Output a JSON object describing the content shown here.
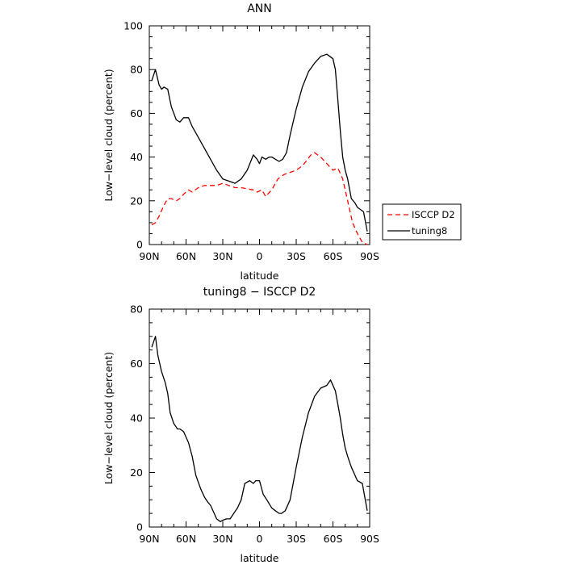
{
  "chart_data": [
    {
      "type": "line",
      "title": "ANN",
      "xlabel": "latitude",
      "ylabel": "Low−level cloud (percent)",
      "x_ticks": [
        "90N",
        "60N",
        "30N",
        "0",
        "30S",
        "60S",
        "90S"
      ],
      "xlim": [
        90,
        -90
      ],
      "ylim": [
        0,
        100
      ],
      "y_ticks": [
        0,
        20,
        40,
        60,
        80,
        100
      ],
      "grid": false,
      "legend_position": "right-bottom-outside",
      "series": [
        {
          "name": "ISCCP D2",
          "color": "#ff0000",
          "dash": "dashed",
          "x": [
            88,
            85,
            82,
            78,
            75,
            72,
            68,
            65,
            62,
            58,
            55,
            50,
            45,
            40,
            35,
            30,
            25,
            20,
            15,
            10,
            5,
            2,
            -2,
            -5,
            -10,
            -15,
            -20,
            -25,
            -30,
            -35,
            -38,
            -42,
            -45,
            -50,
            -55,
            -60,
            -64,
            -68,
            -72,
            -76,
            -80,
            -84,
            -88
          ],
          "y": [
            9,
            10,
            13,
            18,
            21,
            21,
            20,
            21,
            23,
            25,
            24,
            26,
            27,
            27,
            27,
            28,
            27,
            26,
            26,
            25.5,
            25,
            24,
            25,
            22,
            25,
            30,
            32,
            33,
            34,
            36,
            38,
            41,
            42,
            40,
            37,
            34,
            35,
            30,
            20,
            10,
            5,
            1,
            0
          ]
        },
        {
          "name": "tuning8",
          "color": "#000000",
          "dash": "solid",
          "x": [
            88,
            85,
            82,
            80,
            78,
            75,
            72,
            68,
            65,
            62,
            58,
            55,
            50,
            45,
            40,
            35,
            30,
            25,
            20,
            15,
            10,
            5,
            2,
            0,
            -2,
            -5,
            -8,
            -10,
            -13,
            -16,
            -19,
            -22,
            -25,
            -30,
            -35,
            -40,
            -45,
            -50,
            -55,
            -60,
            -62,
            -64,
            -66,
            -68,
            -70,
            -72,
            -75,
            -78,
            -80,
            -85,
            -88
          ],
          "y": [
            75,
            80,
            73,
            71,
            72,
            71,
            63,
            57,
            56,
            58,
            58,
            54,
            49,
            44,
            39,
            34,
            30,
            29,
            28,
            30,
            34,
            41,
            39,
            37,
            40,
            39,
            40,
            40,
            39,
            38,
            39,
            42,
            50,
            62,
            72,
            79,
            83,
            86,
            87,
            85,
            80,
            66,
            52,
            40,
            34,
            30,
            21,
            19,
            17,
            15,
            6
          ]
        }
      ]
    },
    {
      "type": "line",
      "title": "tuning8 − ISCCP D2",
      "xlabel": "latitude",
      "ylabel": "Low−level cloud (percent)",
      "x_ticks": [
        "90N",
        "60N",
        "30N",
        "0",
        "30S",
        "60S",
        "90S"
      ],
      "xlim": [
        90,
        -90
      ],
      "ylim": [
        0,
        80
      ],
      "y_ticks": [
        0,
        20,
        40,
        60,
        80
      ],
      "grid": false,
      "series": [
        {
          "color": "#000000",
          "dash": "solid",
          "x": [
            88,
            85,
            83,
            80,
            77,
            75,
            73,
            70,
            67,
            65,
            62,
            58,
            55,
            52,
            48,
            45,
            42,
            40,
            37,
            35,
            32,
            30,
            27,
            24,
            21,
            18,
            15,
            12,
            8,
            5,
            3,
            0,
            -3,
            -6,
            -10,
            -13,
            -16,
            -18,
            -21,
            -25,
            -30,
            -35,
            -40,
            -45,
            -50,
            -55,
            -58,
            -62,
            -64,
            -66,
            -68,
            -70,
            -72,
            -75,
            -78,
            -80,
            -84,
            -88
          ],
          "y": [
            66,
            70,
            63,
            57,
            53,
            49,
            42,
            38,
            36,
            36,
            35,
            31,
            26,
            19,
            14,
            11,
            9,
            8,
            5,
            3,
            2,
            2.5,
            3,
            3,
            5,
            7,
            10,
            16,
            17,
            16,
            17,
            17,
            12,
            10,
            7,
            6,
            5,
            5,
            6,
            10,
            22,
            33,
            42,
            48,
            51,
            52,
            54,
            50,
            45,
            40,
            34,
            29,
            26,
            22,
            19,
            17,
            16,
            6
          ]
        }
      ]
    }
  ]
}
